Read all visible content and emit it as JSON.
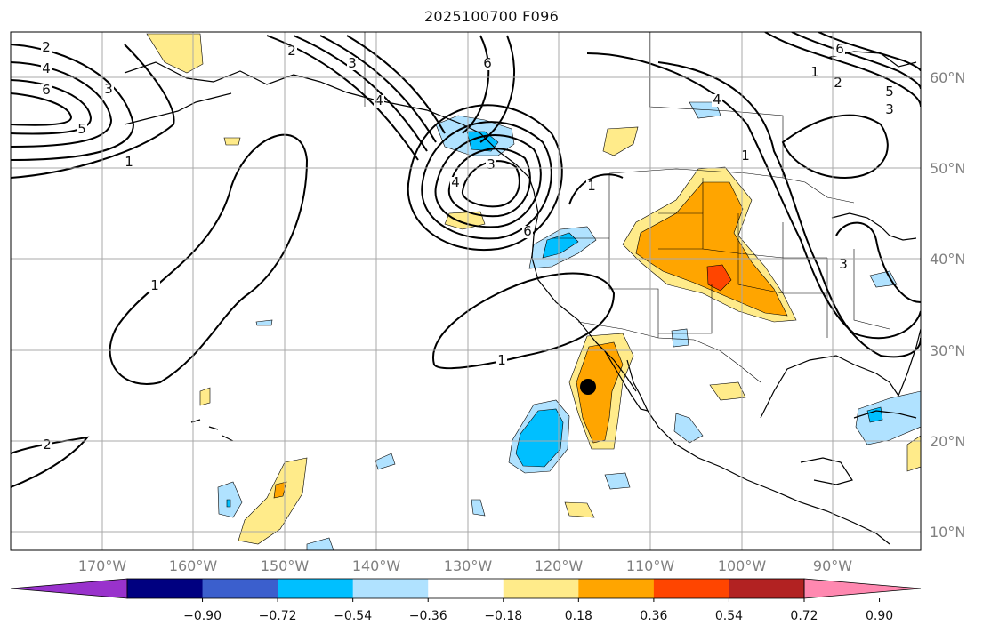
{
  "title": "2025100700 F096",
  "map": {
    "lat_labels": [
      "60°N",
      "50°N",
      "40°N",
      "30°N",
      "20°N",
      "10°N"
    ],
    "lon_labels": [
      "170°W",
      "160°W",
      "150°W",
      "140°W",
      "130°W",
      "120°W",
      "110°W",
      "100°W",
      "90°W"
    ],
    "contour_labels": [
      "2",
      "4",
      "6",
      "3",
      "5",
      "1",
      "2",
      "3",
      "4",
      "6",
      "3",
      "4",
      "6",
      "1",
      "1",
      "1",
      "2",
      "1",
      "4",
      "2",
      "6",
      "5",
      "3",
      "1",
      "3"
    ],
    "marker": {
      "name": "point-marker",
      "lat": 26,
      "lon": -116.5
    }
  },
  "colorbar": {
    "colors": [
      "#9932cc",
      "#000080",
      "#3b5fcd",
      "#00bfff",
      "#b0e2ff",
      "#ffffff",
      "#ffeb8a",
      "#ffa500",
      "#ff4500",
      "#b22222",
      "#ff88b0"
    ],
    "tick_labels": [
      "−0.90",
      "−0.72",
      "−0.54",
      "−0.36",
      "−0.18",
      "0.18",
      "0.36",
      "0.54",
      "0.72",
      "0.90"
    ]
  },
  "colors": {
    "light_blue": "#b0e2ff",
    "deep_sky_blue": "#00bfff",
    "light_yellow": "#ffeb8a",
    "orange": "#ffa500",
    "red_orange": "#ff4500",
    "grid": "#a8a8a8"
  }
}
